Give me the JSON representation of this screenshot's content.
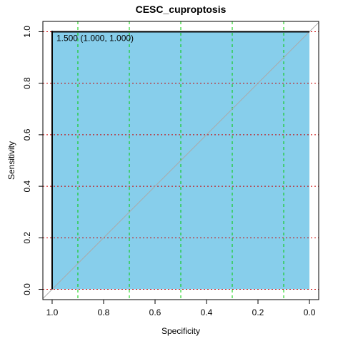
{
  "chart_data": {
    "type": "roc",
    "title": "CESC_cuproptosis",
    "xlabel": "Specificity",
    "ylabel": "Sensitivity",
    "x": [
      1,
      1,
      0
    ],
    "values": [
      0,
      1,
      1
    ],
    "color": "#87ceeb",
    "xlim": [
      1.036,
      -0.036
    ],
    "ylim": [
      -0.04,
      1.04
    ],
    "xticks": [
      {
        "value": 1,
        "label": "1.0"
      },
      {
        "value": 0.8,
        "label": "0.8"
      },
      {
        "value": 0.6,
        "label": "0.6"
      },
      {
        "value": 0.4,
        "label": "0.4"
      },
      {
        "value": 0.2,
        "label": "0.2"
      },
      {
        "value": 0,
        "label": "0.0"
      }
    ],
    "yticks": [
      {
        "value": 0,
        "label": "0.0"
      },
      {
        "value": 0.2,
        "label": "0.2"
      },
      {
        "value": 0.4,
        "label": "0.4"
      },
      {
        "value": 0.6,
        "label": "0.6"
      },
      {
        "value": 0.8,
        "label": "0.8"
      },
      {
        "value": 1,
        "label": "1.0"
      }
    ],
    "xgrid": [
      0.9,
      0.7,
      0.5,
      0.3,
      0.1
    ],
    "ygrid": [
      0,
      0.2,
      0.4,
      0.6,
      0.8,
      1
    ],
    "xgrid_color": "#00cc00",
    "ygrid_color": "#cc0000",
    "annotation": "1.500 (1.000, 1.000)"
  }
}
